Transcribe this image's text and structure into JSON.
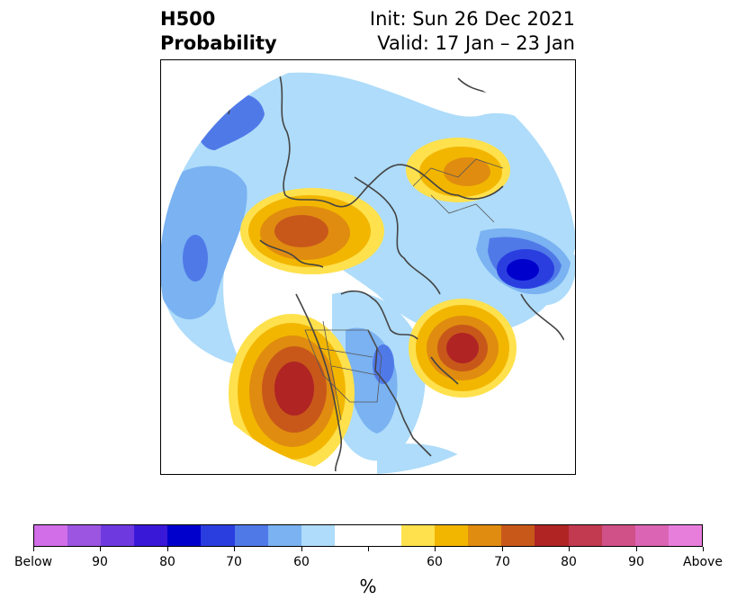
{
  "title": {
    "left_line1": "H500",
    "left_line2": "Probability",
    "right_line1": "Init: Sun 26 Dec 2021",
    "right_line2": "Valid: 17 Jan – 23 Jan"
  },
  "map": {
    "projection": "north-polar-stereographic",
    "background": "#ffffff",
    "coastline_color": "#444444"
  },
  "colorbar": {
    "unit_label": "%",
    "colors": [
      "#d16ee8",
      "#9b55e0",
      "#6e3ae0",
      "#3a18d8",
      "#0000cc",
      "#2a3ee0",
      "#5079e8",
      "#7ab2f2",
      "#aedcfa",
      "#ffffff",
      "#ffffff",
      "#ffe14d",
      "#f2b600",
      "#e08c10",
      "#c8581a",
      "#b02424",
      "#c23a50",
      "#d05088",
      "#dc64b4",
      "#e87edc"
    ],
    "tick_labels": [
      "Below",
      "90",
      "80",
      "70",
      "60",
      "",
      "60",
      "70",
      "80",
      "90",
      "Above"
    ]
  }
}
